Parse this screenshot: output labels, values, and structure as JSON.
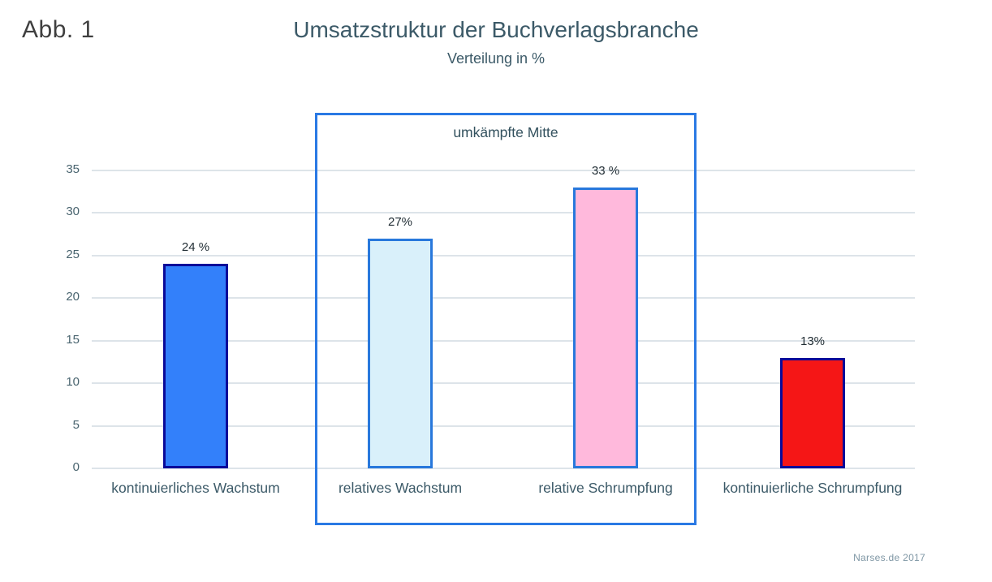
{
  "figure_label": "Abb. 1",
  "annotation": {
    "label": "umkämpfte Mitte"
  },
  "source": "Narses.de 2017",
  "colors": {
    "title_text": "#3C5A68",
    "axis_text": "#49646F",
    "gridline": "#DDE4E9",
    "annotation_box_border": "#2A79E4",
    "value_label_text": "#222E35",
    "figure_label_text": "#3F3F3F",
    "source_text": "#7E96A4"
  },
  "chart_data": {
    "type": "bar",
    "title": "Umsatzstruktur der Buchverlagsbranche",
    "subtitle": "Verteilung in %",
    "xlabel": "",
    "ylabel": "",
    "ylim": [
      0,
      35
    ],
    "yticks": [
      0,
      5,
      10,
      15,
      20,
      25,
      30,
      35
    ],
    "grid": true,
    "legend": false,
    "categories": [
      "kontinuierliches Wachstum",
      "relatives Wachstum",
      "relative Schrumpfung",
      "kontinuierliche Schrumpfung"
    ],
    "values": [
      24,
      27,
      33,
      13
    ],
    "bars": [
      {
        "category": "kontinuierliches Wachstum",
        "value": 24,
        "label": "24 %",
        "fill": "#3380FA",
        "border": "#0A0A99",
        "in_annotation_box": false
      },
      {
        "category": "relatives Wachstum",
        "value": 27,
        "label": "27%",
        "fill": "#D9F0FA",
        "border": "#2878DC",
        "in_annotation_box": true
      },
      {
        "category": "relative Schrumpfung",
        "value": 33,
        "label": "33 %",
        "fill": "#FFB9DC",
        "border": "#2878DC",
        "in_annotation_box": true
      },
      {
        "category": "kontinuierliche Schrumpfung",
        "value": 13,
        "label": "13%",
        "fill": "#F51616",
        "border": "#0A0A99",
        "in_annotation_box": false
      }
    ]
  }
}
